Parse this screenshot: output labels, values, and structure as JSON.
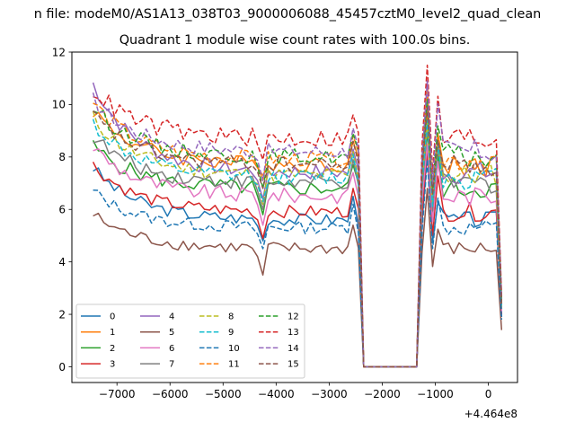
{
  "chart_data": {
    "type": "line",
    "suptitle": "n file: modeM0/AS1A13_038T03_9000006088_45457cztM0_level2_quad_clean",
    "title": "Quadrant 1 module wise count rates with 100.0s bins.",
    "xlabel": "",
    "ylabel": "",
    "x_offset_label": "+4.464e8",
    "xlim": [
      -7850,
      550
    ],
    "ylim": [
      -0.6,
      12
    ],
    "xticks": [
      -7000,
      -6000,
      -5000,
      -4000,
      -3000,
      -2000,
      -1000,
      0
    ],
    "xtick_labels": [
      "−7000",
      "−6000",
      "−5000",
      "−4000",
      "−3000",
      "−2000",
      "−1000",
      "0"
    ],
    "yticks": [
      0,
      2,
      4,
      6,
      8,
      10,
      12
    ],
    "ytick_labels": [
      "0",
      "2",
      "4",
      "6",
      "8",
      "10",
      "12"
    ],
    "grid": false,
    "legend": {
      "location": "lower-left",
      "columns": 4
    },
    "x_segments": [
      {
        "start": -7450,
        "end": -2450,
        "step": 100
      },
      {
        "start": -2350,
        "end": -1350,
        "step": 100
      },
      {
        "start": -1250,
        "end": 250,
        "step": 100
      }
    ],
    "series": [
      {
        "name": "0",
        "color": "#1f77b4",
        "dash": "solid",
        "level": 5.6,
        "start": 7.6,
        "dip": 4.8,
        "peak": 8.2,
        "end": 1.9,
        "amp": 0.2
      },
      {
        "name": "1",
        "color": "#ff7f0e",
        "dash": "solid",
        "level": 7.7,
        "start": 9.8,
        "dip": 7.3,
        "peak": 9.6,
        "end": 2.4,
        "amp": 0.25
      },
      {
        "name": "2",
        "color": "#2ca02c",
        "dash": "solid",
        "level": 6.8,
        "start": 8.4,
        "dip": 5.8,
        "peak": 9.0,
        "end": 2.2,
        "amp": 0.25
      },
      {
        "name": "3",
        "color": "#d62728",
        "dash": "solid",
        "level": 5.9,
        "start": 7.7,
        "dip": 4.9,
        "peak": 8.3,
        "end": 2.0,
        "amp": 0.2
      },
      {
        "name": "4",
        "color": "#9467bd",
        "dash": "solid",
        "level": 7.4,
        "start": 10.8,
        "dip": 6.4,
        "peak": 10.9,
        "end": 2.3,
        "amp": 0.25
      },
      {
        "name": "5",
        "color": "#8c564b",
        "dash": "solid",
        "level": 4.5,
        "start": 5.8,
        "dip": 3.5,
        "peak": 6.8,
        "end": 1.4,
        "amp": 0.2
      },
      {
        "name": "6",
        "color": "#e377c2",
        "dash": "solid",
        "level": 6.5,
        "start": 8.4,
        "dip": 5.4,
        "peak": 8.5,
        "end": 2.1,
        "amp": 0.25
      },
      {
        "name": "7",
        "color": "#7f7f7f",
        "dash": "solid",
        "level": 7.0,
        "start": 8.8,
        "dip": 6.0,
        "peak": 9.2,
        "end": 2.2,
        "amp": 0.25
      },
      {
        "name": "8",
        "color": "#bcbd22",
        "dash": "dashed",
        "level": 7.3,
        "start": 9.5,
        "dip": 6.2,
        "peak": 9.3,
        "end": 2.3,
        "amp": 0.25
      },
      {
        "name": "9",
        "color": "#17becf",
        "dash": "dashed",
        "level": 7.2,
        "start": 9.3,
        "dip": 6.3,
        "peak": 9.4,
        "end": 2.3,
        "amp": 0.25
      },
      {
        "name": "10",
        "color": "#1f77b4",
        "dash": "dashed",
        "level": 5.3,
        "start": 6.7,
        "dip": 4.5,
        "peak": 7.9,
        "end": 1.8,
        "amp": 0.2
      },
      {
        "name": "11",
        "color": "#ff7f0e",
        "dash": "dashed",
        "level": 7.9,
        "start": 10.1,
        "dip": 7.1,
        "peak": 10.6,
        "end": 2.5,
        "amp": 0.25
      },
      {
        "name": "12",
        "color": "#2ca02c",
        "dash": "dashed",
        "level": 8.0,
        "start": 9.9,
        "dip": 6.8,
        "peak": 10.2,
        "end": 2.5,
        "amp": 0.25
      },
      {
        "name": "13",
        "color": "#d62728",
        "dash": "dashed",
        "level": 8.7,
        "start": 10.6,
        "dip": 7.9,
        "peak": 11.5,
        "end": 2.7,
        "amp": 0.3
      },
      {
        "name": "14",
        "color": "#9467bd",
        "dash": "dashed",
        "level": 8.2,
        "start": 10.2,
        "dip": 7.1,
        "peak": 10.9,
        "end": 2.6,
        "amp": 0.25
      },
      {
        "name": "15",
        "color": "#8c564b",
        "dash": "dashed",
        "level": 7.7,
        "start": 9.6,
        "dip": 6.8,
        "peak": 9.9,
        "end": 2.4,
        "amp": 0.25
      }
    ]
  }
}
